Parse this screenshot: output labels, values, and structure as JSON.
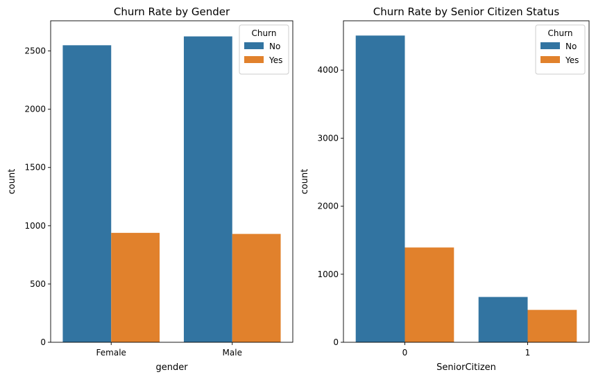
{
  "chart_data": [
    {
      "type": "bar",
      "title": "Churn Rate by Gender",
      "xlabel": "gender",
      "ylabel": "count",
      "categories": [
        "Female",
        "Male"
      ],
      "yticks": [
        0,
        500,
        1000,
        1500,
        2000,
        2500
      ],
      "ylim": [
        0,
        2759
      ],
      "legend": {
        "title": "Churn",
        "placement": "top-right"
      },
      "series": [
        {
          "name": "No",
          "color": "#3274a1",
          "values": [
            2549,
            2625
          ]
        },
        {
          "name": "Yes",
          "color": "#e1812c",
          "values": [
            939,
            930
          ]
        }
      ]
    },
    {
      "type": "bar",
      "title": "Churn Rate by Senior Citizen Status",
      "xlabel": "SeniorCitizen",
      "ylabel": "count",
      "categories": [
        "0",
        "1"
      ],
      "yticks": [
        0,
        1000,
        2000,
        3000,
        4000
      ],
      "ylim": [
        0,
        4725
      ],
      "legend": {
        "title": "Churn",
        "placement": "top-right"
      },
      "series": [
        {
          "name": "No",
          "color": "#3274a1",
          "values": [
            4508,
            666
          ]
        },
        {
          "name": "Yes",
          "color": "#e1812c",
          "values": [
            1393,
            476
          ]
        }
      ]
    }
  ]
}
